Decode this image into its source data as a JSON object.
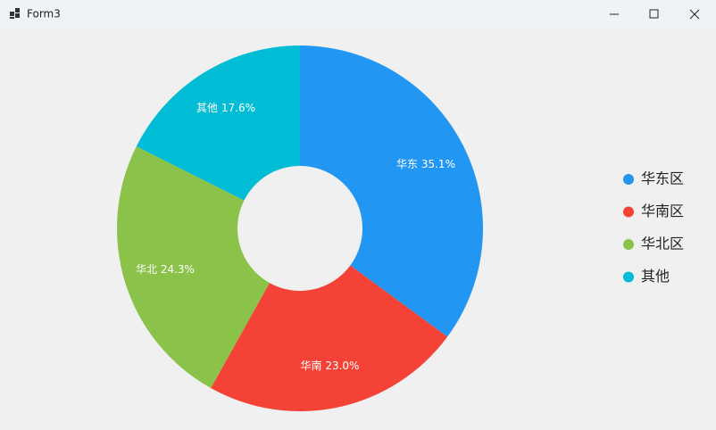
{
  "window": {
    "title": "Form3"
  },
  "chart_data": {
    "type": "donut",
    "categories": [
      "华东区",
      "华南区",
      "华北区",
      "其他"
    ],
    "values": [
      35.1,
      23.0,
      24.3,
      17.6
    ],
    "value_labels": [
      "华东 35.1%",
      "华南 23.0%",
      "华北 24.3%",
      "其他 17.6%"
    ],
    "colors": [
      "#2196f3",
      "#f44336",
      "#8bc34a",
      "#00bcd4"
    ],
    "legend": "right"
  }
}
